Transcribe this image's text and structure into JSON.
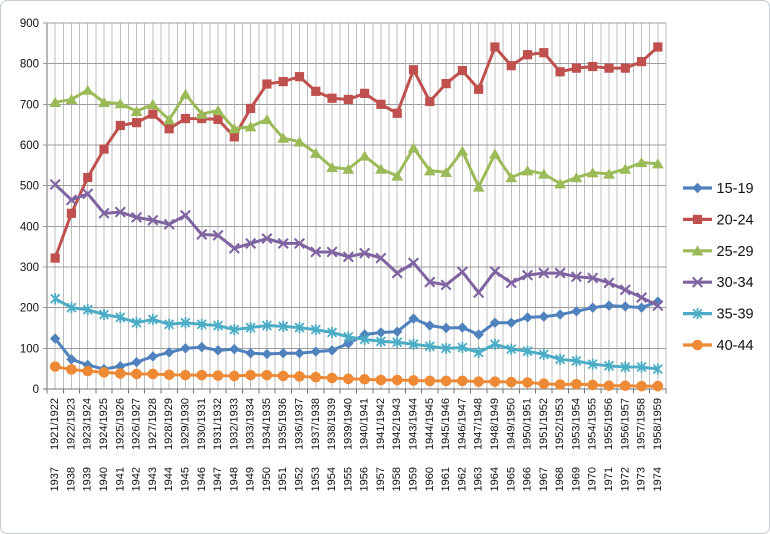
{
  "chart_data": {
    "type": "line",
    "title": "",
    "xlabel": "",
    "ylabel": "",
    "ylim": [
      0,
      900
    ],
    "ytick_step": 100,
    "ytick_labels": [
      "0",
      "100",
      "200",
      "300",
      "400",
      "500",
      "600",
      "700",
      "800",
      "900"
    ],
    "grid": "both",
    "legend_position": "right",
    "categories_row1": [
      "1921/1922",
      "1922/1923",
      "1923/1924",
      "1924/1925",
      "1925/1926",
      "1926/1927",
      "1927/1928",
      "1928/1929",
      "1929/1930",
      "1930/1931",
      "1931/1932",
      "1932/1933",
      "1933/1934",
      "1934/1935",
      "1935/1936",
      "1936/1937",
      "1937/1938",
      "1938/1939",
      "1939/1940",
      "1940/1941",
      "1941/1942",
      "1942/1943",
      "1943/1944",
      "1944/1945",
      "1945/1946",
      "1946/1947",
      "1947/1948",
      "1948/1949",
      "1949/1950",
      "1950/1951",
      "1951/1952",
      "1952/1953",
      "1953/1954",
      "1954/1955",
      "1955/1956",
      "1956/1957",
      "1957/1958",
      "1958/1959"
    ],
    "categories_row2": [
      "1937",
      "1938",
      "1939",
      "1940",
      "1941",
      "1942",
      "1943",
      "1944",
      "1945",
      "1946",
      "1947",
      "1948",
      "1949",
      "1950",
      "1951",
      "1952",
      "1953",
      "1954",
      "1955",
      "1956",
      "1957",
      "1958",
      "1959",
      "1960",
      "1961",
      "1962",
      "1963",
      "1964",
      "1965",
      "1966",
      "1967",
      "1968",
      "1969",
      "1970",
      "1971",
      "1972",
      "1973",
      "1974"
    ],
    "series": [
      {
        "name": "15-19",
        "color": "#4F81BD",
        "marker": "diamond",
        "values": [
          124,
          73,
          59,
          49,
          56,
          66,
          80,
          90,
          100,
          103,
          95,
          98,
          88,
          86,
          88,
          88,
          92,
          95,
          112,
          134,
          139,
          141,
          173,
          156,
          150,
          151,
          134,
          163,
          163,
          176,
          178,
          183,
          191,
          200,
          205,
          203,
          200,
          215
        ]
      },
      {
        "name": "20-24",
        "color": "#C0504D",
        "marker": "square",
        "values": [
          322,
          432,
          520,
          590,
          648,
          655,
          676,
          640,
          665,
          665,
          663,
          620,
          690,
          750,
          756,
          768,
          732,
          715,
          712,
          727,
          700,
          678,
          785,
          707,
          751,
          783,
          737,
          841,
          795,
          822,
          827,
          780,
          789,
          793,
          789,
          789,
          805,
          841
        ]
      },
      {
        "name": "25-29",
        "color": "#9BBB59",
        "marker": "triangle",
        "values": [
          705,
          712,
          735,
          705,
          702,
          683,
          700,
          662,
          725,
          676,
          685,
          640,
          645,
          663,
          617,
          608,
          580,
          545,
          541,
          573,
          541,
          524,
          593,
          537,
          533,
          585,
          497,
          578,
          520,
          537,
          529,
          505,
          520,
          532,
          529,
          541,
          557,
          554
        ]
      },
      {
        "name": "30-34",
        "color": "#8064A2",
        "marker": "x",
        "values": [
          503,
          465,
          480,
          432,
          435,
          422,
          415,
          405,
          427,
          380,
          378,
          346,
          358,
          370,
          358,
          358,
          337,
          337,
          325,
          334,
          322,
          285,
          310,
          263,
          256,
          288,
          237,
          289,
          261,
          280,
          285,
          285,
          276,
          273,
          261,
          244,
          225,
          205
        ]
      },
      {
        "name": "35-39",
        "color": "#4BACC6",
        "marker": "star",
        "values": [
          222,
          200,
          195,
          183,
          176,
          163,
          171,
          159,
          163,
          159,
          156,
          146,
          151,
          156,
          154,
          151,
          146,
          139,
          128,
          122,
          117,
          115,
          110,
          105,
          100,
          102,
          90,
          110,
          98,
          93,
          85,
          73,
          69,
          61,
          57,
          54,
          54,
          49
        ]
      },
      {
        "name": "40-44",
        "color": "#EE8A36",
        "marker": "circle",
        "values": [
          55,
          48,
          44,
          41,
          38,
          37,
          37,
          35,
          34,
          34,
          33,
          32,
          34,
          34,
          32,
          31,
          29,
          27,
          25,
          24,
          22,
          22,
          21,
          20,
          20,
          20,
          18,
          18,
          17,
          16,
          13,
          11,
          12,
          10,
          8,
          8,
          7,
          7
        ]
      }
    ],
    "colors": {
      "h_gridline": "#9c9c9c",
      "v_gridline": "#bcbcbc",
      "axis": "#737373",
      "frame_border": "#c3cbd3",
      "background": "#ffffff"
    }
  }
}
